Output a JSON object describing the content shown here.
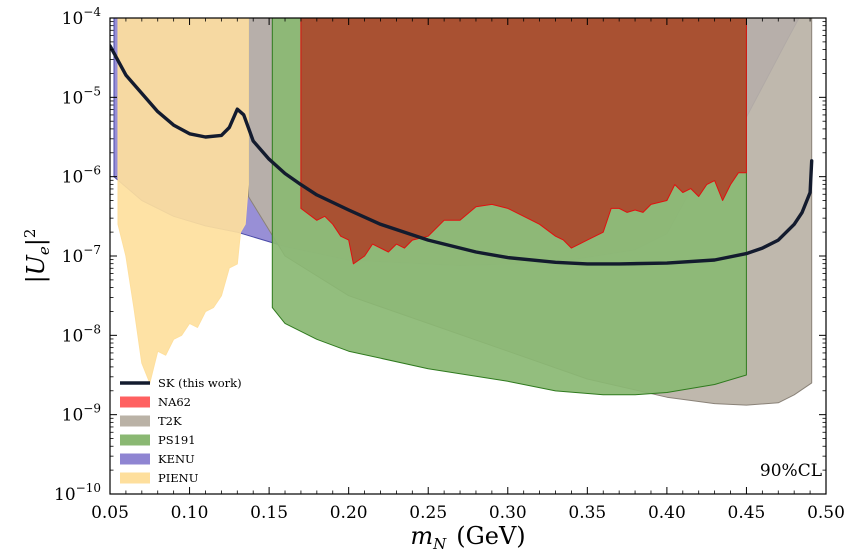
{
  "chart_data": {
    "type": "area",
    "title": "",
    "xlabel_main": "m",
    "xlabel_sub": "N",
    "xlabel_unit": "(GeV)",
    "ylabel_main": "|U",
    "ylabel_sub": "e",
    "ylabel_end": "|",
    "ylabel_sup": "2",
    "xlim": [
      0.05,
      0.5
    ],
    "ylim_log10": [
      -10,
      -4
    ],
    "yscale": "log",
    "x_ticks": [
      0.05,
      0.1,
      0.15,
      0.2,
      0.25,
      0.3,
      0.35,
      0.4,
      0.45,
      0.5
    ],
    "x_tick_labels": [
      "0.05",
      "0.10",
      "0.15",
      "0.20",
      "0.25",
      "0.30",
      "0.35",
      "0.40",
      "0.45",
      "0.50"
    ],
    "y_ticks_log10": [
      -10,
      -9,
      -8,
      -7,
      -6,
      -5,
      -4
    ],
    "y_tick_base": "10",
    "y_tick_exps": [
      "−10",
      "−9",
      "−8",
      "−7",
      "−6",
      "−5",
      "−4"
    ],
    "annotation": "90%CL",
    "legend_position": "lower-left",
    "regions": [
      {
        "name": "KENU",
        "color": "#8f85d2",
        "edge": "#4a4aa8",
        "boundary": [
          [
            0.0525,
            -4
          ],
          [
            0.0525,
            -6.0
          ],
          [
            0.07,
            -6.3
          ],
          [
            0.09,
            -6.5
          ],
          [
            0.11,
            -6.62
          ],
          [
            0.13,
            -6.7
          ],
          [
            0.16,
            -6.88
          ],
          [
            0.2,
            -7.05
          ],
          [
            0.27,
            -7.12
          ],
          [
            0.33,
            -7.08
          ],
          [
            0.38,
            -6.92
          ],
          [
            0.4,
            -6.72
          ],
          [
            0.425,
            -5.8
          ],
          [
            0.45,
            -5.25
          ],
          [
            0.475,
            -4.3
          ],
          [
            0.483,
            -4
          ],
          [
            0.155,
            -4
          ],
          [
            0.15,
            -4
          ],
          [
            0.14,
            -4
          ],
          [
            0.137,
            -4
          ]
        ]
      },
      {
        "name": "T2K",
        "color": "#bab2a6",
        "edge": "#8a8278",
        "boundary": [
          [
            0.137,
            -4
          ],
          [
            0.137,
            -6.25
          ],
          [
            0.16,
            -7.0
          ],
          [
            0.2,
            -7.5
          ],
          [
            0.25,
            -7.85
          ],
          [
            0.3,
            -8.2
          ],
          [
            0.35,
            -8.55
          ],
          [
            0.4,
            -8.78
          ],
          [
            0.43,
            -8.86
          ],
          [
            0.45,
            -8.88
          ],
          [
            0.47,
            -8.85
          ],
          [
            0.48,
            -8.75
          ],
          [
            0.491,
            -8.6
          ],
          [
            0.491,
            -4
          ]
        ]
      },
      {
        "name": "PS191",
        "color": "#8ab873",
        "edge": "#2f7a1e",
        "boundary": [
          [
            0.152,
            -4
          ],
          [
            0.152,
            -7.65
          ],
          [
            0.16,
            -7.85
          ],
          [
            0.18,
            -8.05
          ],
          [
            0.2,
            -8.2
          ],
          [
            0.25,
            -8.42
          ],
          [
            0.3,
            -8.58
          ],
          [
            0.33,
            -8.7
          ],
          [
            0.36,
            -8.75
          ],
          [
            0.38,
            -8.75
          ],
          [
            0.4,
            -8.72
          ],
          [
            0.43,
            -8.62
          ],
          [
            0.45,
            -8.5
          ],
          [
            0.45,
            -4
          ]
        ]
      },
      {
        "name": "NA62",
        "color": "#a94f31",
        "edge": "#e01010",
        "boundary": [
          [
            0.17,
            -4
          ],
          [
            0.17,
            -6.4
          ],
          [
            0.18,
            -6.55
          ],
          [
            0.185,
            -6.5
          ],
          [
            0.19,
            -6.6
          ],
          [
            0.195,
            -6.75
          ],
          [
            0.2,
            -6.8
          ],
          [
            0.203,
            -7.1
          ],
          [
            0.21,
            -7.0
          ],
          [
            0.215,
            -6.85
          ],
          [
            0.225,
            -6.95
          ],
          [
            0.23,
            -6.85
          ],
          [
            0.235,
            -6.9
          ],
          [
            0.24,
            -6.8
          ],
          [
            0.25,
            -6.75
          ],
          [
            0.26,
            -6.55
          ],
          [
            0.27,
            -6.55
          ],
          [
            0.28,
            -6.38
          ],
          [
            0.29,
            -6.35
          ],
          [
            0.3,
            -6.4
          ],
          [
            0.31,
            -6.5
          ],
          [
            0.32,
            -6.6
          ],
          [
            0.33,
            -6.75
          ],
          [
            0.335,
            -6.8
          ],
          [
            0.34,
            -6.9
          ],
          [
            0.345,
            -6.85
          ],
          [
            0.35,
            -6.8
          ],
          [
            0.36,
            -6.7
          ],
          [
            0.365,
            -6.4
          ],
          [
            0.37,
            -6.4
          ],
          [
            0.375,
            -6.45
          ],
          [
            0.38,
            -6.42
          ],
          [
            0.385,
            -6.45
          ],
          [
            0.39,
            -6.35
          ],
          [
            0.4,
            -6.3
          ],
          [
            0.405,
            -6.1
          ],
          [
            0.41,
            -6.2
          ],
          [
            0.415,
            -6.15
          ],
          [
            0.42,
            -6.25
          ],
          [
            0.425,
            -6.1
          ],
          [
            0.43,
            -6.05
          ],
          [
            0.435,
            -6.3
          ],
          [
            0.44,
            -6.1
          ],
          [
            0.445,
            -5.95
          ],
          [
            0.45,
            -5.95
          ],
          [
            0.45,
            -4
          ]
        ]
      },
      {
        "name": "PIENU",
        "color": "#fedf9d",
        "edge": "#fedf9d",
        "boundary": [
          [
            0.055,
            -6.1
          ],
          [
            0.055,
            -6.6
          ],
          [
            0.06,
            -7.0
          ],
          [
            0.065,
            -7.65
          ],
          [
            0.07,
            -8.35
          ],
          [
            0.075,
            -8.6
          ],
          [
            0.08,
            -8.2
          ],
          [
            0.085,
            -8.25
          ],
          [
            0.09,
            -8.05
          ],
          [
            0.095,
            -8.0
          ],
          [
            0.1,
            -7.85
          ],
          [
            0.105,
            -7.9
          ],
          [
            0.11,
            -7.7
          ],
          [
            0.115,
            -7.65
          ],
          [
            0.12,
            -7.5
          ],
          [
            0.125,
            -7.15
          ],
          [
            0.13,
            -7.1
          ],
          [
            0.132,
            -6.7
          ],
          [
            0.135,
            -6.6
          ],
          [
            0.136,
            -6.35
          ],
          [
            0.137,
            -6.1
          ],
          [
            0.137,
            -4
          ],
          [
            0.055,
            -4
          ]
        ]
      }
    ],
    "series": [
      {
        "name": "SK (this work)",
        "color": "#131b2e",
        "points": [
          [
            0.05,
            -4.35
          ],
          [
            0.06,
            -4.72
          ],
          [
            0.07,
            -4.95
          ],
          [
            0.08,
            -5.18
          ],
          [
            0.09,
            -5.35
          ],
          [
            0.1,
            -5.46
          ],
          [
            0.11,
            -5.5
          ],
          [
            0.12,
            -5.48
          ],
          [
            0.125,
            -5.38
          ],
          [
            0.13,
            -5.15
          ],
          [
            0.134,
            -5.22
          ],
          [
            0.14,
            -5.55
          ],
          [
            0.15,
            -5.78
          ],
          [
            0.16,
            -5.96
          ],
          [
            0.17,
            -6.1
          ],
          [
            0.18,
            -6.23
          ],
          [
            0.2,
            -6.42
          ],
          [
            0.22,
            -6.6
          ],
          [
            0.25,
            -6.8
          ],
          [
            0.28,
            -6.95
          ],
          [
            0.3,
            -7.02
          ],
          [
            0.33,
            -7.08
          ],
          [
            0.35,
            -7.1
          ],
          [
            0.37,
            -7.1
          ],
          [
            0.4,
            -7.09
          ],
          [
            0.43,
            -7.05
          ],
          [
            0.45,
            -6.97
          ],
          [
            0.46,
            -6.9
          ],
          [
            0.47,
            -6.8
          ],
          [
            0.48,
            -6.6
          ],
          [
            0.485,
            -6.45
          ],
          [
            0.49,
            -6.2
          ],
          [
            0.491,
            -5.8
          ]
        ]
      }
    ],
    "legend": [
      {
        "label": "SK (this work)",
        "kind": "line",
        "color": "#131b2e"
      },
      {
        "label": "NA62",
        "kind": "patch",
        "color": "#ff6060"
      },
      {
        "label": "T2K",
        "kind": "patch",
        "color": "#bab2a6"
      },
      {
        "label": "PS191",
        "kind": "patch",
        "color": "#8ab873"
      },
      {
        "label": "KENU",
        "kind": "patch",
        "color": "#8f85d2"
      },
      {
        "label": "PIENU",
        "kind": "patch",
        "color": "#fedf9d"
      }
    ]
  }
}
